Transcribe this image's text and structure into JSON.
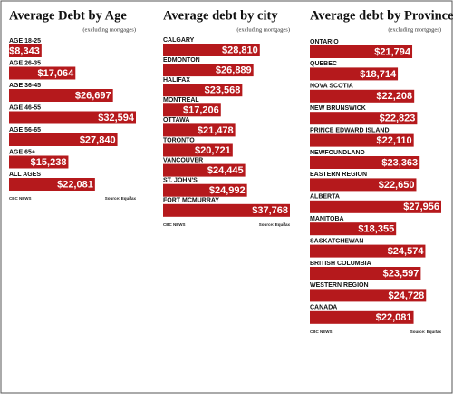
{
  "chart_data": [
    {
      "type": "bar",
      "orientation": "horizontal",
      "title": "Average Debt by Age",
      "subtitle": "(excluding mortgages)",
      "color": "#b5191c",
      "categories": [
        "AGE 18-25",
        "AGE 26-35",
        "AGE 36-45",
        "AGE 46-55",
        "AGE 56-65",
        "AGE 65+",
        "ALL AGES"
      ],
      "values": [
        8343,
        17064,
        26697,
        32594,
        27840,
        15238,
        22081
      ],
      "value_labels": [
        "$8,343",
        "$17,064",
        "$26,697",
        "$32,594",
        "$27,840",
        "$15,238",
        "$22,081"
      ],
      "footer_left": "CBC NEWS",
      "footer_right": "Source: Equifax"
    },
    {
      "type": "bar",
      "orientation": "horizontal",
      "title": "Average debt by city",
      "subtitle": "(excluding mortgages)",
      "color": "#b5191c",
      "categories": [
        "CALGARY",
        "EDMONTON",
        "HALIFAX",
        "MONTREAL",
        "OTTAWA",
        "TORONTO",
        "VANCOUVER",
        "ST. JOHN'S",
        "FORT MCMURRAY"
      ],
      "values": [
        28810,
        26889,
        23568,
        17206,
        21478,
        20721,
        24445,
        24992,
        37768
      ],
      "value_labels": [
        "$28,810",
        "$26,889",
        "$23,568",
        "$17,206",
        "$21,478",
        "$20,721",
        "$24,445",
        "$24,992",
        "$37,768"
      ],
      "footer_left": "CBC NEWS",
      "footer_right": "Source: Equifax"
    },
    {
      "type": "bar",
      "orientation": "horizontal",
      "title": "Average debt by Province",
      "subtitle": "(excluding mortgages)",
      "color": "#b5191c",
      "categories": [
        "ONTARIO",
        "QUEBEC",
        "NOVA SCOTIA",
        "NEW BRUNSWICK",
        "PRINCE EDWARD ISLAND",
        "NEWFOUNDLAND",
        "EASTERN REGION",
        "ALBERTA",
        "MANITOBA",
        "SASKATCHEWAN",
        "BRITISH COLUMBIA",
        "WESTERN REGION",
        "CANADA"
      ],
      "values": [
        21794,
        18714,
        22208,
        22823,
        22110,
        23363,
        22650,
        27956,
        18355,
        24574,
        23597,
        24728,
        22081
      ],
      "value_labels": [
        "$21,794",
        "$18,714",
        "$22,208",
        "$22,823",
        "$22,110",
        "$23,363",
        "$22,650",
        "$27,956",
        "$18,355",
        "$24,574",
        "$23,597",
        "$24,728",
        "$22,081"
      ],
      "footer_left": "CBC NEWS",
      "footer_right": "Source: Equifax"
    }
  ]
}
